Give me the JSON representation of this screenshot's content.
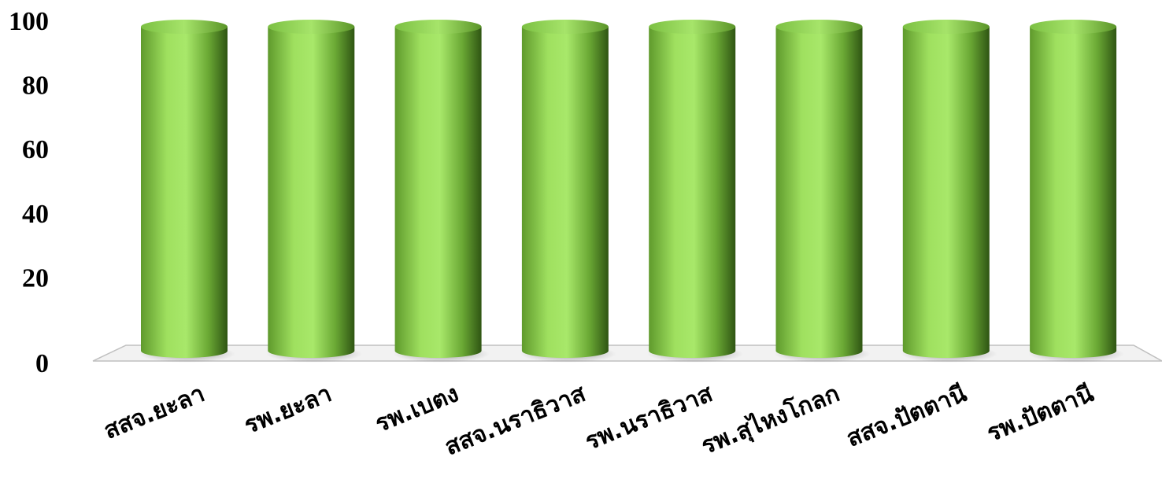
{
  "chart_data": {
    "type": "bar",
    "categories": [
      "สสจ.ยะลา",
      "รพ.ยะลา",
      "รพ.เบตง",
      "สสจ.นราธิวาส",
      "รพ.นราธิวาส",
      "รพ.สุไหงโกลก",
      "สสจ.ปัตตานี",
      "รพ.ปัตตานี"
    ],
    "values": [
      100,
      100,
      100,
      100,
      100,
      100,
      100,
      100
    ],
    "yticks": [
      "0",
      "20",
      "40",
      "60",
      "80",
      "100"
    ],
    "ylim": [
      0,
      100
    ],
    "title": "",
    "xlabel": "",
    "ylabel": "",
    "grid": false,
    "bar_color": "#8fd14f"
  }
}
